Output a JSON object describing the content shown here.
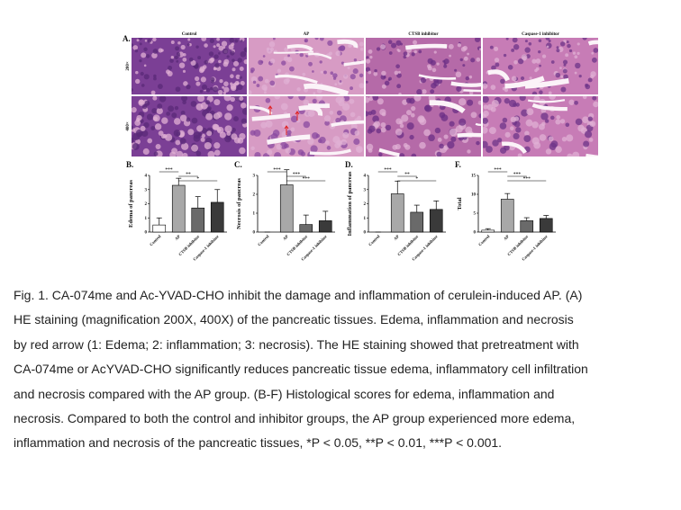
{
  "panel_a": {
    "label": "A.",
    "columns": [
      "Control",
      "AP",
      "CTSB inhibitor",
      "Caspase-1 inhibitor"
    ],
    "rows": [
      "200×",
      "400×"
    ]
  },
  "chart_data": [
    {
      "type": "bar",
      "panel_label": "B.",
      "y_label": "Edema of pancreas",
      "categories": [
        "Control",
        "AP",
        "CTSB inhibitor",
        "Caspase-1 inhibitor"
      ],
      "values": [
        0.5,
        3.3,
        1.7,
        2.1
      ],
      "errors": [
        0.5,
        0.5,
        0.8,
        0.9
      ],
      "colors": [
        "#ffffff",
        "#a8a8a8",
        "#6a6a6a",
        "#3a3a3a"
      ],
      "ylim": [
        0,
        4
      ],
      "yticks": [
        0,
        1,
        2,
        3,
        4
      ],
      "annotations": [
        {
          "text": "***",
          "between": [
            "Control",
            "AP"
          ]
        },
        {
          "text": "**",
          "between": [
            "AP",
            "CTSB inhibitor"
          ]
        },
        {
          "text": "*",
          "between": [
            "AP",
            "Caspase-1 inhibitor"
          ]
        }
      ]
    },
    {
      "type": "bar",
      "panel_label": "C.",
      "y_label": "Necrosis of pancreas",
      "categories": [
        "Control",
        "AP",
        "CTSB inhibitor",
        "Caspase-1 inhibitor"
      ],
      "values": [
        0,
        2.5,
        0.4,
        0.6
      ],
      "errors": [
        0,
        0.8,
        0.5,
        0.5
      ],
      "colors": [
        "#ffffff",
        "#a8a8a8",
        "#6a6a6a",
        "#3a3a3a"
      ],
      "ylim": [
        0,
        3
      ],
      "yticks": [
        0,
        1,
        2,
        3
      ],
      "annotations": [
        {
          "text": "***",
          "between": [
            "Control",
            "AP"
          ]
        },
        {
          "text": "***",
          "between": [
            "AP",
            "CTSB inhibitor"
          ]
        },
        {
          "text": "***",
          "between": [
            "AP",
            "Caspase-1 inhibitor"
          ]
        }
      ]
    },
    {
      "type": "bar",
      "panel_label": "D.",
      "y_label": "Inflammation of pancreas",
      "categories": [
        "Control",
        "AP",
        "CTSB inhibitor",
        "Caspase-1 inhibitor"
      ],
      "values": [
        0,
        2.7,
        1.4,
        1.6
      ],
      "errors": [
        0,
        0.9,
        0.5,
        0.6
      ],
      "colors": [
        "#ffffff",
        "#a8a8a8",
        "#6a6a6a",
        "#3a3a3a"
      ],
      "ylim": [
        0,
        4
      ],
      "yticks": [
        0,
        1,
        2,
        3,
        4
      ],
      "annotations": [
        {
          "text": "***",
          "between": [
            "Control",
            "AP"
          ]
        },
        {
          "text": "**",
          "between": [
            "AP",
            "CTSB inhibitor"
          ]
        },
        {
          "text": "*",
          "between": [
            "AP",
            "Caspase-1 inhibitor"
          ]
        }
      ]
    },
    {
      "type": "bar",
      "panel_label": "F.",
      "y_label": "Total",
      "categories": [
        "Control",
        "AP",
        "CTSB inhibitor",
        "Caspase-1 inhibitor"
      ],
      "values": [
        0.5,
        8.7,
        3,
        3.6
      ],
      "errors": [
        0.4,
        1.5,
        0.8,
        0.8
      ],
      "colors": [
        "#ffffff",
        "#a8a8a8",
        "#6a6a6a",
        "#3a3a3a"
      ],
      "ylim": [
        0,
        15
      ],
      "yticks": [
        0,
        5,
        10,
        15
      ],
      "annotations": [
        {
          "text": "***",
          "between": [
            "Control",
            "AP"
          ]
        },
        {
          "text": "***",
          "between": [
            "AP",
            "CTSB inhibitor"
          ]
        },
        {
          "text": "***",
          "between": [
            "AP",
            "Caspase-1 inhibitor"
          ]
        }
      ]
    }
  ],
  "caption": {
    "lines": [
      "Fig. 1. CA-074me and Ac-YVAD-CHO inhibit the damage and inflammation of cerulein-induced AP. (A)",
      "HE staining (magnification 200X, 400X) of the pancreatic tissues. Edema, inflammation and necrosis",
      "by red arrow (1: Edema; 2: inflammation; 3: necrosis). The HE staining showed that pretreatment with",
      "CA-074me or AcYVAD-CHO significantly reduces pancreatic tissue edema, inflammatory cell infiltration",
      "and necrosis compared with the AP group. (B-F) Histological scores for edema, inflammation and",
      "necrosis. Compared to both the control and inhibitor groups, the AP group experienced more edema,",
      "inflammation and necrosis of the pancreatic tissues, *P < 0.05, **P < 0.01, ***P < 0.001."
    ]
  }
}
